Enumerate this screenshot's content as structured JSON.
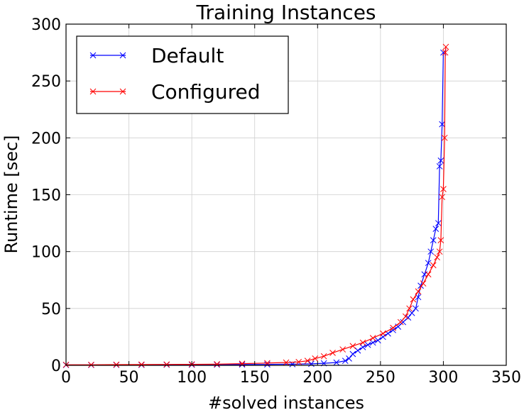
{
  "chart_data": {
    "type": "line",
    "title": "Training Instances",
    "xlabel": "#solved instances",
    "ylabel": "Runtime [sec]",
    "xlim": [
      0,
      350
    ],
    "ylim": [
      0,
      300
    ],
    "xticks": [
      0,
      50,
      100,
      150,
      200,
      250,
      300,
      350
    ],
    "yticks": [
      0,
      50,
      100,
      150,
      200,
      250,
      300
    ],
    "grid": true,
    "legend_position": "top-left",
    "marker": "x",
    "series": [
      {
        "name": "Default",
        "color": "#0000ff",
        "points": [
          [
            0,
            0.3
          ],
          [
            20,
            0.3
          ],
          [
            40,
            0.4
          ],
          [
            60,
            0.4
          ],
          [
            80,
            0.5
          ],
          [
            100,
            0.5
          ],
          [
            120,
            0.6
          ],
          [
            140,
            0.7
          ],
          [
            160,
            0.8
          ],
          [
            180,
            1.0
          ],
          [
            195,
            1.3
          ],
          [
            205,
            1.8
          ],
          [
            215,
            2.5
          ],
          [
            222,
            4
          ],
          [
            225,
            6
          ],
          [
            228,
            10
          ],
          [
            232,
            13
          ],
          [
            236,
            16
          ],
          [
            240,
            18
          ],
          [
            244,
            20
          ],
          [
            248,
            22
          ],
          [
            252,
            25
          ],
          [
            256,
            28
          ],
          [
            260,
            31
          ],
          [
            264,
            34
          ],
          [
            268,
            38
          ],
          [
            272,
            42
          ],
          [
            275,
            46
          ],
          [
            278,
            50
          ],
          [
            280,
            60
          ],
          [
            282,
            70
          ],
          [
            285,
            80
          ],
          [
            288,
            90
          ],
          [
            290,
            100
          ],
          [
            292,
            110
          ],
          [
            294,
            120
          ],
          [
            296,
            125
          ],
          [
            297,
            175
          ],
          [
            298,
            180
          ],
          [
            299,
            212
          ],
          [
            300,
            275
          ]
        ]
      },
      {
        "name": "Configured",
        "color": "#ff0000",
        "points": [
          [
            0,
            0.5
          ],
          [
            20,
            0.5
          ],
          [
            40,
            0.6
          ],
          [
            60,
            0.7
          ],
          [
            80,
            0.8
          ],
          [
            100,
            0.9
          ],
          [
            120,
            1.0
          ],
          [
            140,
            1.5
          ],
          [
            160,
            2.0
          ],
          [
            175,
            2.5
          ],
          [
            185,
            3
          ],
          [
            192,
            4
          ],
          [
            198,
            6
          ],
          [
            205,
            8
          ],
          [
            212,
            11
          ],
          [
            220,
            14
          ],
          [
            228,
            17
          ],
          [
            236,
            20
          ],
          [
            244,
            24
          ],
          [
            252,
            28
          ],
          [
            260,
            33
          ],
          [
            266,
            38
          ],
          [
            270,
            43
          ],
          [
            273,
            50
          ],
          [
            276,
            58
          ],
          [
            280,
            65
          ],
          [
            284,
            72
          ],
          [
            288,
            80
          ],
          [
            292,
            88
          ],
          [
            295,
            95
          ],
          [
            297,
            100
          ],
          [
            298,
            110
          ],
          [
            299,
            148
          ],
          [
            300,
            155
          ],
          [
            301,
            200
          ],
          [
            301.5,
            275
          ],
          [
            302,
            280
          ]
        ]
      }
    ]
  }
}
